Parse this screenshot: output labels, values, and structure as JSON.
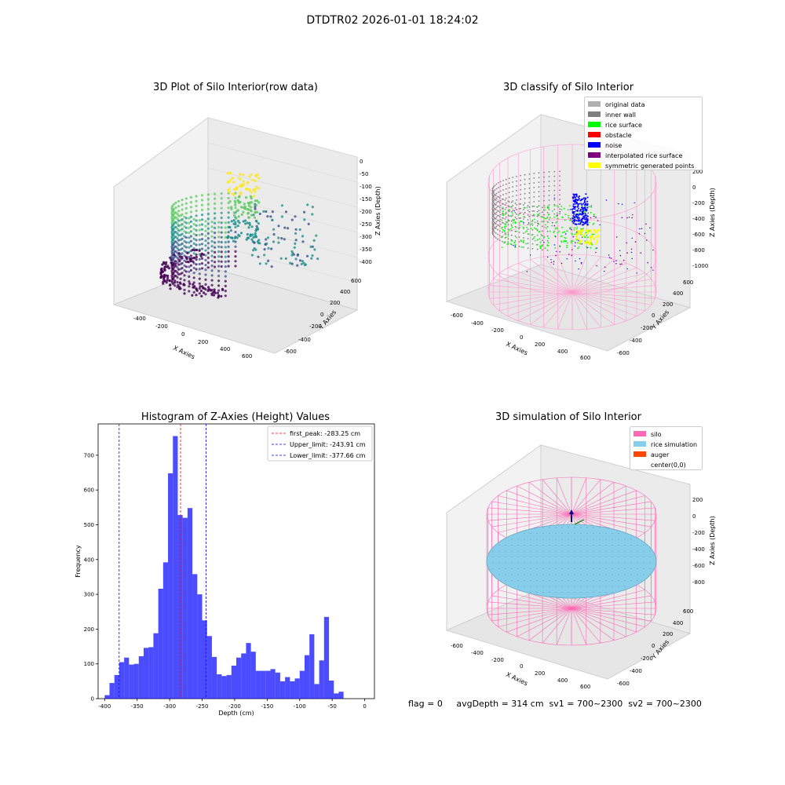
{
  "figure": {
    "suptitle": "DTDTR02 2026-01-01 18:24:02",
    "footer": "flag = 0     avgDepth = 314 cm  sv1 = 700~2300  sv2 = 700~2300"
  },
  "panels": {
    "raw": {
      "title": "3D Plot of Silo Interior(row data)",
      "xlabel": "X Axies",
      "ylabel": "Y Axies",
      "zlabel": "Z Axies (Depth)",
      "xticks": [
        "-400",
        "-200",
        "0",
        "200",
        "400",
        "600"
      ],
      "yticks": [
        "-600",
        "-400",
        "-200",
        "0",
        "200",
        "400",
        "600"
      ],
      "zticks": [
        "0",
        "-50",
        "-100",
        "-150",
        "-200",
        "-250",
        "-300",
        "-350",
        "-400"
      ]
    },
    "classify": {
      "title": "3D classify of Silo Interior",
      "xlabel": "X Axies",
      "ylabel": "Y Axies",
      "zlabel": "Z Axies (Depth)",
      "xticks": [
        "-600",
        "-400",
        "-200",
        "0",
        "200",
        "400",
        "600"
      ],
      "yticks": [
        "-600",
        "-400",
        "-200",
        "0",
        "200",
        "400",
        "600"
      ],
      "zticks": [
        "200",
        "0",
        "-200",
        "-400",
        "-600",
        "-800",
        "-1000"
      ],
      "legend": [
        {
          "label": "original data",
          "color": "#b0b0b0"
        },
        {
          "label": "inner wall",
          "color": "#808080"
        },
        {
          "label": "rice surface",
          "color": "#00ff00"
        },
        {
          "label": "obstacle",
          "color": "#ff0000"
        },
        {
          "label": "noise",
          "color": "#0000ff"
        },
        {
          "label": "interpolated rice surface",
          "color": "#800080"
        },
        {
          "label": "symmetric generated points",
          "color": "#ffff00"
        }
      ]
    },
    "simulation": {
      "title": "3D simulation of Silo Interior",
      "xlabel": "X Axies",
      "ylabel": "Y Axies",
      "zlabel": "Z Axies (Depth)",
      "xticks": [
        "-600",
        "-400",
        "-200",
        "0",
        "200",
        "400",
        "600"
      ],
      "yticks": [
        "-600",
        "-400",
        "-200",
        "0",
        "200",
        "400",
        "600"
      ],
      "zticks": [
        "200",
        "0",
        "-200",
        "-400",
        "-600",
        "-800"
      ],
      "legend": [
        {
          "label": "silo",
          "color": "#ff69b4"
        },
        {
          "label": "rice simulation",
          "color": "#87ceeb"
        },
        {
          "label": "auger",
          "color": "#ff4500"
        },
        {
          "label": "center(0,0)",
          "color": "#ffffff"
        }
      ]
    }
  },
  "chart_data": {
    "type": "bar",
    "title": "Histogram of Z-Axies (Height) Values",
    "xlabel": "Depth (cm)",
    "ylabel": "Frequency",
    "xlim": [
      -410,
      15
    ],
    "ylim": [
      0,
      790
    ],
    "xticks": [
      -400,
      -350,
      -300,
      -250,
      -200,
      -150,
      -100,
      -50,
      0
    ],
    "yticks": [
      0,
      100,
      200,
      300,
      400,
      500,
      600,
      700
    ],
    "bar_color": "#0000ff",
    "bins": [
      {
        "x0": -400,
        "x1": -392.5,
        "v": 10
      },
      {
        "x0": -392.5,
        "x1": -385,
        "v": 45
      },
      {
        "x0": -385,
        "x1": -377.5,
        "v": 68
      },
      {
        "x0": -377.5,
        "x1": -370,
        "v": 105
      },
      {
        "x0": -370,
        "x1": -362.5,
        "v": 118
      },
      {
        "x0": -362.5,
        "x1": -355,
        "v": 98
      },
      {
        "x0": -355,
        "x1": -347.5,
        "v": 100
      },
      {
        "x0": -347.5,
        "x1": -340,
        "v": 122
      },
      {
        "x0": -340,
        "x1": -332.5,
        "v": 146
      },
      {
        "x0": -332.5,
        "x1": -325,
        "v": 148
      },
      {
        "x0": -325,
        "x1": -317.5,
        "v": 188
      },
      {
        "x0": -317.5,
        "x1": -310,
        "v": 316
      },
      {
        "x0": -310,
        "x1": -302.5,
        "v": 392
      },
      {
        "x0": -302.5,
        "x1": -295,
        "v": 648
      },
      {
        "x0": -295,
        "x1": -287.5,
        "v": 755
      },
      {
        "x0": -287.5,
        "x1": -280,
        "v": 528
      },
      {
        "x0": -280,
        "x1": -272.5,
        "v": 520
      },
      {
        "x0": -272.5,
        "x1": -265,
        "v": 548
      },
      {
        "x0": -265,
        "x1": -257.5,
        "v": 358
      },
      {
        "x0": -257.5,
        "x1": -250,
        "v": 300
      },
      {
        "x0": -250,
        "x1": -242.5,
        "v": 225
      },
      {
        "x0": -242.5,
        "x1": -235,
        "v": 180
      },
      {
        "x0": -235,
        "x1": -227.5,
        "v": 120
      },
      {
        "x0": -227.5,
        "x1": -220,
        "v": 70
      },
      {
        "x0": -220,
        "x1": -212.5,
        "v": 65
      },
      {
        "x0": -212.5,
        "x1": -205,
        "v": 68
      },
      {
        "x0": -205,
        "x1": -197.5,
        "v": 95
      },
      {
        "x0": -197.5,
        "x1": -190,
        "v": 118
      },
      {
        "x0": -190,
        "x1": -182.5,
        "v": 130
      },
      {
        "x0": -182.5,
        "x1": -175,
        "v": 160
      },
      {
        "x0": -175,
        "x1": -167.5,
        "v": 135
      },
      {
        "x0": -167.5,
        "x1": -160,
        "v": 80
      },
      {
        "x0": -160,
        "x1": -152.5,
        "v": 80
      },
      {
        "x0": -152.5,
        "x1": -145,
        "v": 80
      },
      {
        "x0": -145,
        "x1": -137.5,
        "v": 85
      },
      {
        "x0": -137.5,
        "x1": -130,
        "v": 75
      },
      {
        "x0": -130,
        "x1": -122.5,
        "v": 50
      },
      {
        "x0": -122.5,
        "x1": -115,
        "v": 62
      },
      {
        "x0": -115,
        "x1": -107.5,
        "v": 50
      },
      {
        "x0": -107.5,
        "x1": -100,
        "v": 58
      },
      {
        "x0": -100,
        "x1": -92.5,
        "v": 80
      },
      {
        "x0": -92.5,
        "x1": -85,
        "v": 125
      },
      {
        "x0": -85,
        "x1": -77.5,
        "v": 185
      },
      {
        "x0": -77.5,
        "x1": -70,
        "v": 42
      },
      {
        "x0": -70,
        "x1": -62.5,
        "v": 110
      },
      {
        "x0": -62.5,
        "x1": -55,
        "v": 235
      },
      {
        "x0": -55,
        "x1": -47.5,
        "v": 52
      },
      {
        "x0": -47.5,
        "x1": -40,
        "v": 15
      },
      {
        "x0": -40,
        "x1": -32.5,
        "v": 20
      }
    ],
    "vlines": [
      {
        "label": "first_peak: -283.25 cm",
        "x": -283.25,
        "color": "#ff0000"
      },
      {
        "label": "Upper_limit: -243.91 cm",
        "x": -243.91,
        "color": "#0000ff"
      },
      {
        "label": "Lower_limit: -377.66 cm",
        "x": -377.66,
        "color": "#0000ff"
      }
    ],
    "legend_position": "top-right"
  }
}
